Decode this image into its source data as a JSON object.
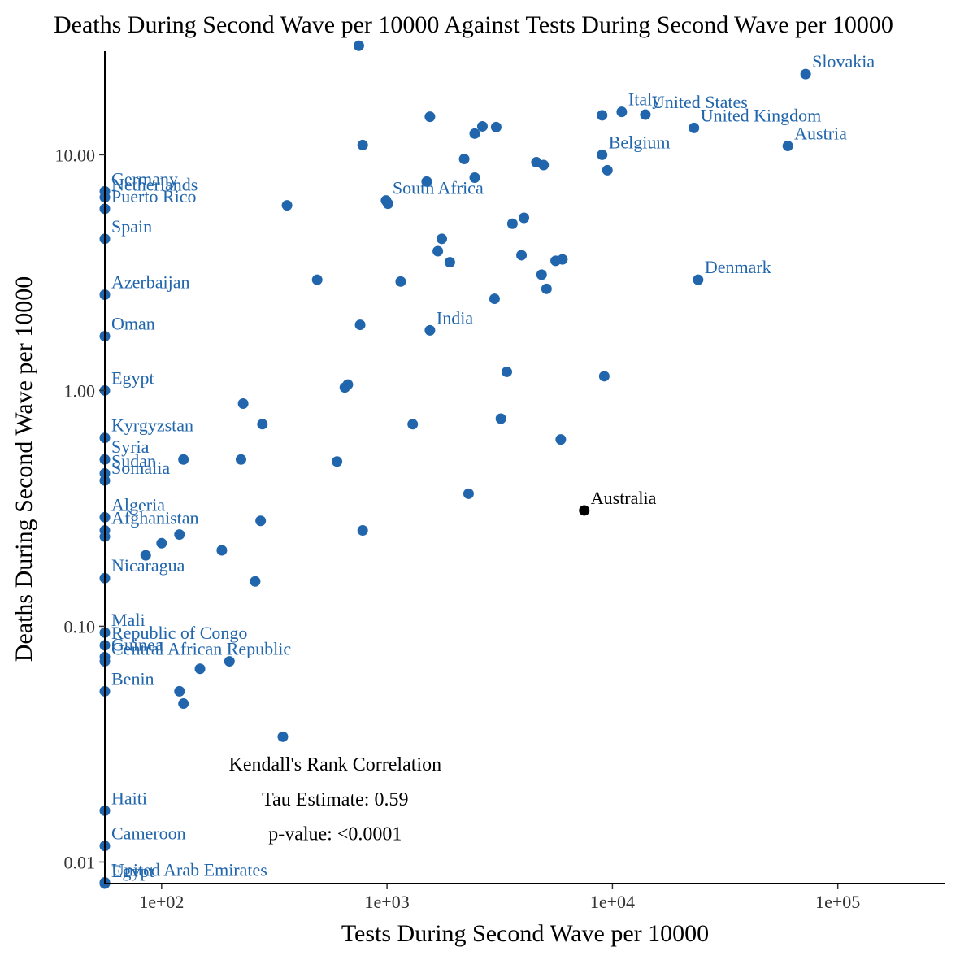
{
  "chart_data": {
    "type": "scatter",
    "title": "Deaths During Second Wave per 10000 Against Tests During Second Wave per 10000",
    "xlabel": "Tests During Second Wave per 10000",
    "ylabel": "Deaths During Second Wave per 10000",
    "x_scale": "log10",
    "y_scale": "log10",
    "xlim": [
      56,
      300000
    ],
    "ylim": [
      0.0081,
      27.5
    ],
    "x_ticks": [
      100,
      1000,
      10000,
      100000
    ],
    "x_tick_labels": [
      "1e+02",
      "1e+03",
      "1e+04",
      "1e+05"
    ],
    "y_ticks": [
      0.01,
      0.1,
      1,
      10
    ],
    "y_tick_labels": [
      "0.01",
      "0.10",
      "1.00",
      "10.00"
    ],
    "grid": false,
    "colors": {
      "default": "#2166ac",
      "highlight": "#000000"
    },
    "annotation": [
      "Kendall's Rank Correlation",
      "Tau Estimate: 0.59",
      "p-value: <0.0001"
    ],
    "points": [
      {
        "label": "Slovakia",
        "x": 72000,
        "y": 22
      },
      {
        "label": "Italy",
        "x": 11000,
        "y": 15.2
      },
      {
        "label": "United States",
        "x": 14000,
        "y": 14.8
      },
      {
        "label": "",
        "x": 9000,
        "y": 14.7
      },
      {
        "label": "United Kingdom",
        "x": 23000,
        "y": 13
      },
      {
        "label": "Austria",
        "x": 60000,
        "y": 10.9
      },
      {
        "label": "Belgium",
        "x": 9000,
        "y": 10
      },
      {
        "label": "",
        "x": 9500,
        "y": 8.6
      },
      {
        "label": "",
        "x": 4600,
        "y": 9.3
      },
      {
        "label": "",
        "x": 4950,
        "y": 9.05
      },
      {
        "label": "",
        "x": 750,
        "y": 29
      },
      {
        "label": "",
        "x": 1550,
        "y": 14.5
      },
      {
        "label": "",
        "x": 2650,
        "y": 13.2
      },
      {
        "label": "",
        "x": 3050,
        "y": 13.1
      },
      {
        "label": "",
        "x": 2450,
        "y": 12.3
      },
      {
        "label": "",
        "x": 780,
        "y": 11
      },
      {
        "label": "",
        "x": 2200,
        "y": 9.6
      },
      {
        "label": "",
        "x": 2450,
        "y": 8
      },
      {
        "label": "",
        "x": 1500,
        "y": 7.7
      },
      {
        "label": "South Africa",
        "x": 990,
        "y": 6.4
      },
      {
        "label": "",
        "x": 1010,
        "y": 6.2
      },
      {
        "label": "",
        "x": 360,
        "y": 6.1
      },
      {
        "label": "",
        "x": 4050,
        "y": 5.4
      },
      {
        "label": "",
        "x": 3600,
        "y": 5.1
      },
      {
        "label": "",
        "x": 1750,
        "y": 4.4
      },
      {
        "label": "",
        "x": 1680,
        "y": 3.9
      },
      {
        "label": "",
        "x": 1900,
        "y": 3.5
      },
      {
        "label": "",
        "x": 3950,
        "y": 3.75
      },
      {
        "label": "",
        "x": 5600,
        "y": 3.55
      },
      {
        "label": "",
        "x": 6000,
        "y": 3.6
      },
      {
        "label": "",
        "x": 4850,
        "y": 3.1
      },
      {
        "label": "",
        "x": 5100,
        "y": 2.7
      },
      {
        "label": "",
        "x": 490,
        "y": 2.95
      },
      {
        "label": "",
        "x": 1150,
        "y": 2.9
      },
      {
        "label": "Denmark",
        "x": 24000,
        "y": 2.95
      },
      {
        "label": "",
        "x": 3000,
        "y": 2.45
      },
      {
        "label": "India",
        "x": 1550,
        "y": 1.8
      },
      {
        "label": "",
        "x": 760,
        "y": 1.9
      },
      {
        "label": "",
        "x": 3400,
        "y": 1.2
      },
      {
        "label": "",
        "x": 9200,
        "y": 1.15
      },
      {
        "label": "",
        "x": 670,
        "y": 1.06
      },
      {
        "label": "",
        "x": 650,
        "y": 1.03
      },
      {
        "label": "",
        "x": 230,
        "y": 0.88
      },
      {
        "label": "",
        "x": 280,
        "y": 0.72
      },
      {
        "label": "",
        "x": 1300,
        "y": 0.72
      },
      {
        "label": "",
        "x": 3200,
        "y": 0.76
      },
      {
        "label": "",
        "x": 5900,
        "y": 0.62
      },
      {
        "label": "",
        "x": 125,
        "y": 0.51
      },
      {
        "label": "",
        "x": 225,
        "y": 0.51
      },
      {
        "label": "",
        "x": 600,
        "y": 0.5
      },
      {
        "label": "",
        "x": 2300,
        "y": 0.365
      },
      {
        "label": "Australia",
        "x": 7500,
        "y": 0.31,
        "highlight": true
      },
      {
        "label": "",
        "x": 275,
        "y": 0.28
      },
      {
        "label": "",
        "x": 780,
        "y": 0.255
      },
      {
        "label": "",
        "x": 120,
        "y": 0.245
      },
      {
        "label": "",
        "x": 100,
        "y": 0.225
      },
      {
        "label": "",
        "x": 85,
        "y": 0.2
      },
      {
        "label": "",
        "x": 185,
        "y": 0.21
      },
      {
        "label": "",
        "x": 260,
        "y": 0.155
      },
      {
        "label": "",
        "x": 200,
        "y": 0.071
      },
      {
        "label": "",
        "x": 148,
        "y": 0.066
      },
      {
        "label": "",
        "x": 120,
        "y": 0.053
      },
      {
        "label": "",
        "x": 125,
        "y": 0.047
      },
      {
        "label": "",
        "x": 345,
        "y": 0.034
      },
      {
        "label": "Germany",
        "x": 56,
        "y": 7
      },
      {
        "label": "Netherlands",
        "x": 56,
        "y": 6.6
      },
      {
        "label": "Puerto Rico",
        "x": 56,
        "y": 5.9
      },
      {
        "label": "Spain",
        "x": 56,
        "y": 4.4
      },
      {
        "label": "Azerbaijan",
        "x": 56,
        "y": 2.55
      },
      {
        "label": "Oman",
        "x": 56,
        "y": 1.7
      },
      {
        "label": "Egypt",
        "x": 56,
        "y": 1.0
      },
      {
        "label": "Kyrgyzstan",
        "x": 56,
        "y": 0.63
      },
      {
        "label": "Syria",
        "x": 56,
        "y": 0.51
      },
      {
        "label": "Sudan",
        "x": 56,
        "y": 0.445
      },
      {
        "label": "Somalia",
        "x": 56,
        "y": 0.415
      },
      {
        "label": "Algeria",
        "x": 56,
        "y": 0.29
      },
      {
        "label": "Afghanistan",
        "x": 56,
        "y": 0.255
      },
      {
        "label": "",
        "x": 56,
        "y": 0.24
      },
      {
        "label": "Nicaragua",
        "x": 56,
        "y": 0.16
      },
      {
        "label": "Mali",
        "x": 56,
        "y": 0.094
      },
      {
        "label": "Republic of Congo",
        "x": 56,
        "y": 0.083
      },
      {
        "label": "Guinea",
        "x": 56,
        "y": 0.074
      },
      {
        "label": "Central African Republic",
        "x": 56,
        "y": 0.071
      },
      {
        "label": "Benin",
        "x": 56,
        "y": 0.053
      },
      {
        "label": "Haiti",
        "x": 56,
        "y": 0.0165
      },
      {
        "label": "Cameroon",
        "x": 56,
        "y": 0.0117
      },
      {
        "label": "United Arab Emirates",
        "x": 56,
        "y": 0.0082
      },
      {
        "label": "Egypt",
        "x": 56,
        "y": 0.0081
      }
    ]
  }
}
